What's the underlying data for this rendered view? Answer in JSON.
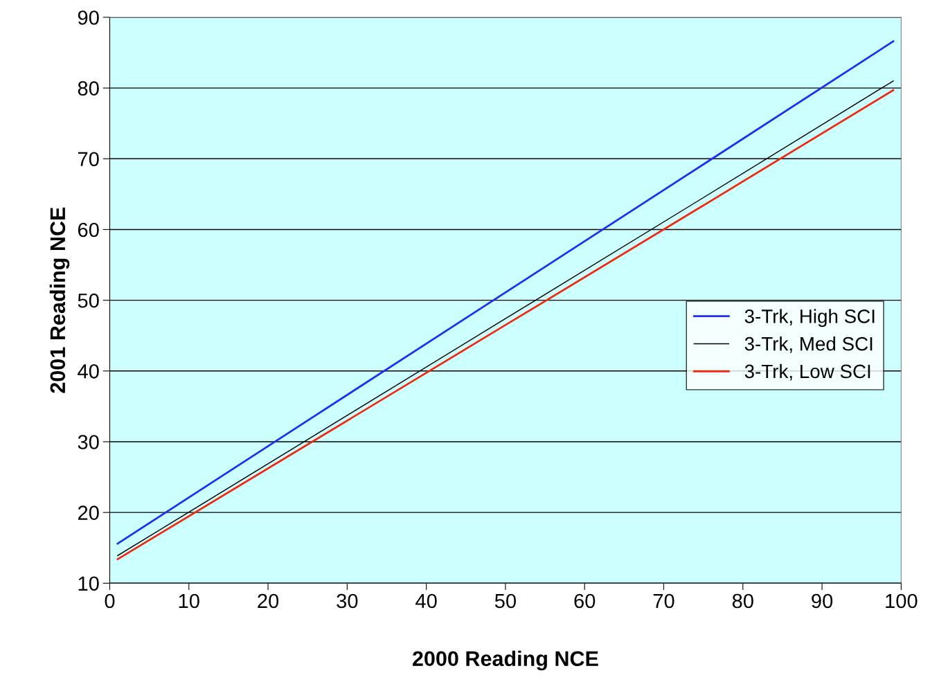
{
  "chart_data": {
    "type": "line",
    "xlabel": "2000 Reading NCE",
    "ylabel": "2001 Reading NCE",
    "x": [
      1,
      25,
      50,
      75,
      99
    ],
    "series": [
      {
        "name": "3-Trk, High SCI",
        "color": "#1f2ef0",
        "values": [
          15.6,
          33.0,
          51.1,
          69.2,
          86.6
        ]
      },
      {
        "name": "3-Trk, Med SCI",
        "color": "#000000",
        "values": [
          13.9,
          30.3,
          47.4,
          64.5,
          81.0
        ]
      },
      {
        "name": "3-Trk, Low SCI",
        "color": "#f02a10",
        "values": [
          13.4,
          29.6,
          46.5,
          63.4,
          79.7
        ]
      }
    ],
    "xlim": [
      0,
      100
    ],
    "xticks": [
      0,
      10,
      20,
      30,
      40,
      50,
      60,
      70,
      80,
      90,
      100
    ],
    "ylim": [
      10,
      90
    ],
    "yticks": [
      10,
      20,
      30,
      40,
      50,
      60,
      70,
      80,
      90
    ],
    "grid": "y",
    "legend": "right",
    "marker": "none",
    "line_style": "solid"
  }
}
